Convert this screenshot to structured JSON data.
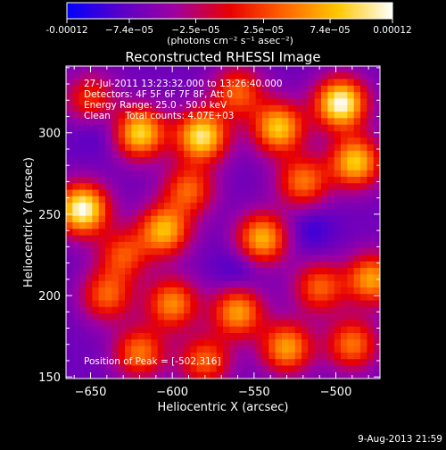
{
  "chart_data": {
    "type": "heatmap",
    "title": "Reconstructed RHESSI Image",
    "xlabel": "Heliocentric X (arcsec)",
    "ylabel": "Heliocentric Y (arcsec)",
    "xlim": [
      -665,
      -473
    ],
    "ylim": [
      149,
      341
    ],
    "xticks": [
      -650,
      -600,
      -550,
      -500
    ],
    "yticks": [
      150,
      200,
      250,
      300
    ],
    "colorbar": {
      "tick_labels": [
        "-0.00012",
        "−7.4e−05",
        "−2.5e−05",
        "2.5e−05",
        "7.4e−05",
        "0.00012"
      ],
      "tick_values": [
        -0.00012,
        -7.4e-05,
        -2.5e-05,
        2.5e-05,
        7.4e-05,
        0.00012
      ],
      "unit_label": "(photons cm⁻² s⁻¹ asec⁻²)",
      "colors": [
        "#0000ff",
        "#5a00c8",
        "#a000a0",
        "#e80000",
        "#ff6400",
        "#ffc800",
        "#ffffff"
      ]
    },
    "annotations": {
      "time": "27-Jul-2011 13:23:32.000 to 13:26:40.000",
      "detectors": "Detectors: 4F 5F 6F 7F 8F, Att 0",
      "energy": "Energy Range: 25.0 - 50.0 keV",
      "clean": "Clean     Total counts: 4.07E+03",
      "peak": "Position of Peak = [-502,316]"
    },
    "peak_position": [
      -502,
      316
    ],
    "total_counts": 4070,
    "hotspots": [
      {
        "x": -655,
        "y": 253,
        "value": 1.0
      },
      {
        "x": -620,
        "y": 300,
        "value": 0.85
      },
      {
        "x": -582,
        "y": 298,
        "value": 0.9
      },
      {
        "x": -535,
        "y": 303,
        "value": 0.8
      },
      {
        "x": -497,
        "y": 318,
        "value": 1.0
      },
      {
        "x": -488,
        "y": 282,
        "value": 0.8
      },
      {
        "x": -605,
        "y": 240,
        "value": 0.75
      },
      {
        "x": -545,
        "y": 235,
        "value": 0.75
      },
      {
        "x": -520,
        "y": 270,
        "value": 0.6
      },
      {
        "x": -640,
        "y": 200,
        "value": 0.55
      },
      {
        "x": -600,
        "y": 195,
        "value": 0.65
      },
      {
        "x": -560,
        "y": 190,
        "value": 0.7
      },
      {
        "x": -510,
        "y": 205,
        "value": 0.55
      },
      {
        "x": -478,
        "y": 210,
        "value": 0.7
      },
      {
        "x": -620,
        "y": 165,
        "value": 0.6
      },
      {
        "x": -580,
        "y": 160,
        "value": 0.55
      },
      {
        "x": -530,
        "y": 168,
        "value": 0.7
      },
      {
        "x": -490,
        "y": 170,
        "value": 0.6
      },
      {
        "x": -650,
        "y": 320,
        "value": 0.5
      },
      {
        "x": -560,
        "y": 325,
        "value": 0.55
      },
      {
        "x": -590,
        "y": 265,
        "value": 0.55
      },
      {
        "x": -630,
        "y": 225,
        "value": 0.5
      }
    ]
  },
  "footer": {
    "timestamp": "9-Aug-2013 21:59"
  }
}
